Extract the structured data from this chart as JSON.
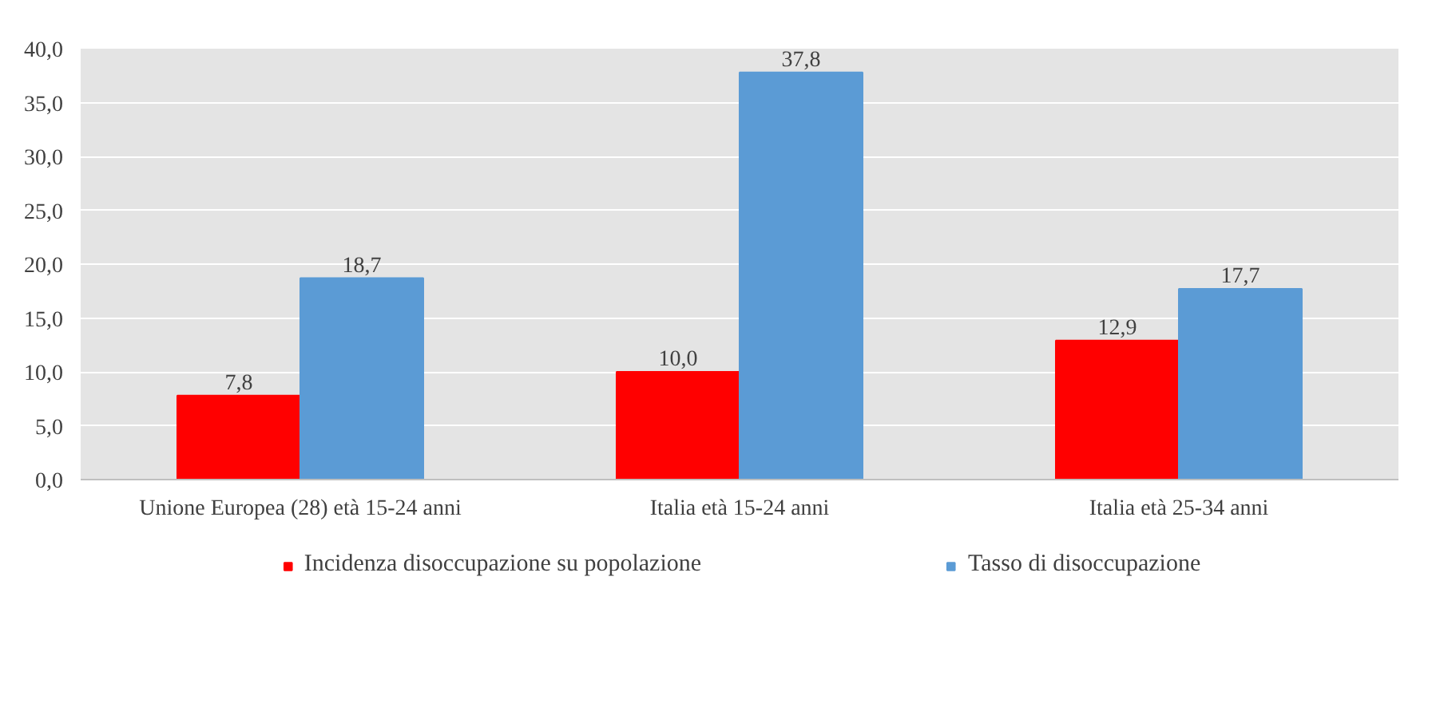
{
  "chart_data": {
    "type": "bar",
    "categories": [
      "Unione Europea (28) età 15-24 anni",
      "Italia età 15-24 anni",
      "Italia età 25-34 anni"
    ],
    "series": [
      {
        "name": "Incidenza disoccupazione su popolazione",
        "color": "#ff0000",
        "values": [
          7.8,
          10.0,
          12.9
        ],
        "value_labels": [
          "7,8",
          "10,0",
          "12,9"
        ]
      },
      {
        "name": "Tasso di disoccupazione",
        "color": "#5b9bd5",
        "values": [
          18.7,
          37.8,
          17.7
        ],
        "value_labels": [
          "18,7",
          "37,8",
          "17,7"
        ]
      }
    ],
    "ylim": [
      0,
      40
    ],
    "yticks": [
      {
        "value": 0,
        "label": "0,0"
      },
      {
        "value": 5,
        "label": "5,0"
      },
      {
        "value": 10,
        "label": "10,0"
      },
      {
        "value": 15,
        "label": "15,0"
      },
      {
        "value": 20,
        "label": "20,0"
      },
      {
        "value": 25,
        "label": "25,0"
      },
      {
        "value": 30,
        "label": "30,0"
      },
      {
        "value": 35,
        "label": "35,0"
      },
      {
        "value": 40,
        "label": "40,0"
      }
    ],
    "grid": "y",
    "legend": "bottom"
  }
}
